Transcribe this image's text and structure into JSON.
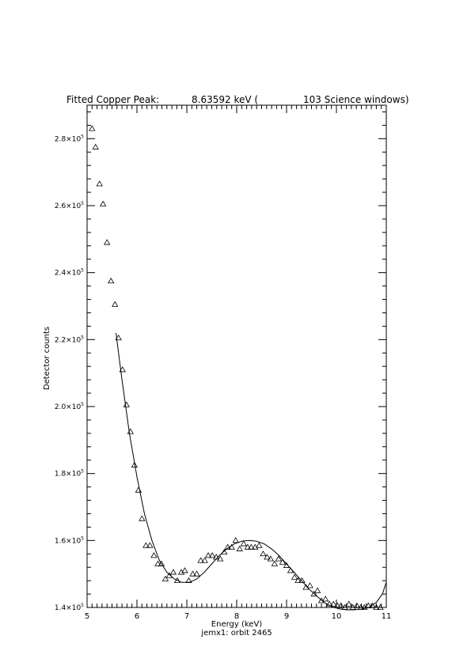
{
  "chart_data": {
    "type": "scatter",
    "title_left": "Fitted Copper Peak:",
    "title_value": "8.63592 keV (",
    "title_right": "103 Science windows)",
    "xlabel": "Energy (keV)",
    "ylabel": "Detector counts",
    "subtitle": "jemx1: orbit 2465",
    "xlim": [
      5,
      11
    ],
    "ylim": [
      140000,
      290000
    ],
    "x_ticks": [
      5,
      6,
      7,
      8,
      9,
      10,
      11
    ],
    "x_tick_labels": [
      "5",
      "6",
      "7",
      "8",
      "9",
      "10",
      "11"
    ],
    "y_ticks": [
      140000,
      160000,
      180000,
      200000,
      220000,
      240000,
      260000,
      280000
    ],
    "y_tick_mantissa": [
      "1.4",
      "1.6",
      "1.8",
      "2.0",
      "2.2",
      "2.4",
      "2.6",
      "2.8"
    ],
    "y_tick_base": "×10",
    "y_tick_exponent": "5",
    "grid": false,
    "series": [
      {
        "marker": "triangle",
        "points": [
          [
            5.1,
            283000
          ],
          [
            5.17,
            277500
          ],
          [
            5.25,
            266500
          ],
          [
            5.32,
            260500
          ],
          [
            5.4,
            249000
          ],
          [
            5.48,
            237500
          ],
          [
            5.56,
            230500
          ],
          [
            5.63,
            220500
          ],
          [
            5.71,
            211000
          ],
          [
            5.79,
            200500
          ],
          [
            5.87,
            192500
          ],
          [
            5.95,
            182500
          ],
          [
            6.03,
            175000
          ],
          [
            6.1,
            166500
          ],
          [
            6.18,
            158500
          ],
          [
            6.26,
            158500
          ],
          [
            6.34,
            155500
          ],
          [
            6.42,
            153000
          ],
          [
            6.49,
            153000
          ],
          [
            6.57,
            148500
          ],
          [
            6.65,
            149500
          ],
          [
            6.73,
            150500
          ],
          [
            6.81,
            148000
          ],
          [
            6.89,
            150500
          ],
          [
            6.96,
            151000
          ],
          [
            7.04,
            148000
          ],
          [
            7.12,
            150000
          ],
          [
            7.2,
            150000
          ],
          [
            7.28,
            154000
          ],
          [
            7.36,
            154000
          ],
          [
            7.43,
            155500
          ],
          [
            7.51,
            155500
          ],
          [
            7.59,
            155000
          ],
          [
            7.67,
            154500
          ],
          [
            7.75,
            156500
          ],
          [
            7.82,
            158000
          ],
          [
            7.9,
            158000
          ],
          [
            7.98,
            160000
          ],
          [
            8.06,
            157500
          ],
          [
            8.14,
            159000
          ],
          [
            8.22,
            158000
          ],
          [
            8.29,
            158000
          ],
          [
            8.37,
            158000
          ],
          [
            8.45,
            158500
          ],
          [
            8.53,
            156000
          ],
          [
            8.61,
            155000
          ],
          [
            8.68,
            154500
          ],
          [
            8.76,
            153000
          ],
          [
            8.84,
            154500
          ],
          [
            8.92,
            153500
          ],
          [
            9.0,
            152500
          ],
          [
            9.08,
            151000
          ],
          [
            9.16,
            149000
          ],
          [
            9.23,
            148000
          ],
          [
            9.31,
            148000
          ],
          [
            9.39,
            146000
          ],
          [
            9.47,
            146500
          ],
          [
            9.55,
            144000
          ],
          [
            9.62,
            145000
          ],
          [
            9.7,
            142000
          ],
          [
            9.78,
            142500
          ],
          [
            9.86,
            141000
          ],
          [
            9.94,
            141000
          ],
          [
            10.02,
            140500
          ],
          [
            10.09,
            140500
          ],
          [
            10.17,
            140000
          ],
          [
            10.25,
            141000
          ],
          [
            10.33,
            140000
          ],
          [
            10.41,
            140500
          ],
          [
            10.49,
            140000
          ],
          [
            10.56,
            140000
          ],
          [
            10.64,
            140500
          ],
          [
            10.72,
            140500
          ],
          [
            10.8,
            140000
          ],
          [
            10.88,
            140000
          ]
        ]
      },
      {
        "marker": "line",
        "points": [
          [
            5.58,
            222000
          ],
          [
            5.7,
            208000
          ],
          [
            5.85,
            192000
          ],
          [
            6.0,
            179000
          ],
          [
            6.15,
            168000
          ],
          [
            6.3,
            160000
          ],
          [
            6.45,
            154000
          ],
          [
            6.6,
            150500
          ],
          [
            6.75,
            148500
          ],
          [
            6.9,
            147500
          ],
          [
            7.05,
            147500
          ],
          [
            7.2,
            148500
          ],
          [
            7.35,
            150500
          ],
          [
            7.5,
            153000
          ],
          [
            7.65,
            155500
          ],
          [
            7.8,
            157500
          ],
          [
            7.95,
            159000
          ],
          [
            8.1,
            159800
          ],
          [
            8.25,
            160000
          ],
          [
            8.4,
            159800
          ],
          [
            8.55,
            159000
          ],
          [
            8.7,
            157500
          ],
          [
            8.85,
            155500
          ],
          [
            9.0,
            153000
          ],
          [
            9.15,
            150500
          ],
          [
            9.3,
            148000
          ],
          [
            9.45,
            145500
          ],
          [
            9.6,
            143500
          ],
          [
            9.75,
            141500
          ],
          [
            9.9,
            140300
          ],
          [
            10.05,
            139600
          ],
          [
            10.2,
            139300
          ],
          [
            10.35,
            139300
          ],
          [
            10.5,
            139500
          ],
          [
            10.65,
            140000
          ],
          [
            10.8,
            141500
          ],
          [
            10.92,
            144000
          ],
          [
            11.0,
            147500
          ]
        ]
      }
    ]
  }
}
